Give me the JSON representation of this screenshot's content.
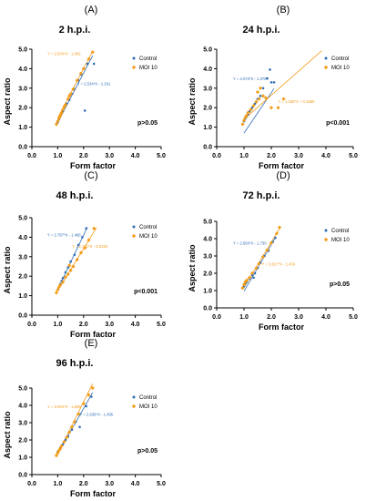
{
  "figure": {
    "series_colors": {
      "Control": "#2f6db5",
      "MOI 10": "#f39c19"
    },
    "fit_colors": {
      "Control": "#2f6db5",
      "MOI 10": "#f39c19"
    }
  },
  "chart_data": [
    {
      "type": "scatter",
      "panel_letter": "(A)",
      "title": "2 h.p.i.",
      "xlabel": "Form factor",
      "ylabel": "Aspect ratio",
      "xlim": [
        0.0,
        5.0
      ],
      "ylim": [
        0.0,
        5.0
      ],
      "x_ticks": [
        "0.0",
        "1.0",
        "2.0",
        "3.0",
        "4.0",
        "5.0"
      ],
      "y_ticks": [
        "0.0",
        "1.0",
        "2.0",
        "3.0",
        "4.0",
        "5.0"
      ],
      "legend": [
        "Control",
        "MOI 10"
      ],
      "legend_position": "top-right",
      "pvalue": "p>0.05",
      "fits": [
        {
          "series": "MOI 10",
          "label": "Y = 2.534*X - 1.062",
          "slope": 2.534,
          "intercept": -1.062,
          "xrange": [
            1.0,
            2.35
          ],
          "label_at": [
            0.6,
            4.7
          ]
        },
        {
          "series": "Control",
          "label": "Y = 2.534*X - 1.291",
          "slope": 2.534,
          "intercept": -1.291,
          "xrange": [
            1.0,
            2.35
          ],
          "label_at": [
            1.75,
            3.15
          ]
        }
      ],
      "series": [
        {
          "name": "Control",
          "points": [
            [
              1.0,
              1.25
            ],
            [
              1.05,
              1.4
            ],
            [
              1.1,
              1.55
            ],
            [
              1.15,
              1.7
            ],
            [
              1.2,
              1.8
            ],
            [
              1.3,
              2.1
            ],
            [
              1.35,
              2.2
            ],
            [
              1.45,
              2.4
            ],
            [
              1.55,
              2.7
            ],
            [
              1.65,
              2.95
            ],
            [
              1.8,
              3.4
            ],
            [
              1.9,
              3.7
            ],
            [
              2.15,
              4.25
            ],
            [
              2.4,
              4.25
            ],
            [
              2.05,
              1.85
            ]
          ]
        },
        {
          "name": "MOI 10",
          "points": [
            [
              0.95,
              1.15
            ],
            [
              1.0,
              1.3
            ],
            [
              1.05,
              1.45
            ],
            [
              1.08,
              1.55
            ],
            [
              1.12,
              1.65
            ],
            [
              1.2,
              1.9
            ],
            [
              1.25,
              2.05
            ],
            [
              1.3,
              2.15
            ],
            [
              1.4,
              2.45
            ],
            [
              1.5,
              2.7
            ],
            [
              1.6,
              2.95
            ],
            [
              1.75,
              3.4
            ],
            [
              1.9,
              3.75
            ],
            [
              2.0,
              4.0
            ],
            [
              2.2,
              4.5
            ],
            [
              2.35,
              4.85
            ],
            [
              1.15,
              1.75
            ],
            [
              1.45,
              2.6
            ]
          ]
        }
      ]
    },
    {
      "type": "scatter",
      "panel_letter": "(B)",
      "title": "24 h.p.i.",
      "xlabel": "Form factor",
      "ylabel": "Aspect ratio",
      "xlim": [
        0.0,
        5.0
      ],
      "ylim": [
        0.0,
        5.0
      ],
      "x_ticks": [
        "0.0",
        "1.0",
        "2.0",
        "3.0",
        "4.0",
        "5.0"
      ],
      "y_ticks": [
        "0.0",
        "1.0",
        "2.0",
        "3.0",
        "4.0",
        "5.0"
      ],
      "legend": [
        "Control",
        "MOI 10"
      ],
      "legend_position": "top-right",
      "pvalue": "p<0.001",
      "fits": [
        {
          "series": "Control",
          "label": "Y = 2.073*X - 1.378",
          "slope": 2.073,
          "intercept": -1.378,
          "xrange": [
            1.0,
            2.1
          ],
          "label_at": [
            0.6,
            3.4
          ]
        },
        {
          "series": "MOI 10",
          "label": "Y = 1.236*X + 0.1665",
          "slope": 1.236,
          "intercept": 0.1665,
          "xrange": [
            1.0,
            3.85
          ],
          "label_at": [
            2.25,
            2.25
          ]
        }
      ],
      "series": [
        {
          "name": "Control",
          "points": [
            [
              1.0,
              1.3
            ],
            [
              1.05,
              1.45
            ],
            [
              1.1,
              1.55
            ],
            [
              1.15,
              1.65
            ],
            [
              1.2,
              1.8
            ],
            [
              1.3,
              2.0
            ],
            [
              1.4,
              2.2
            ],
            [
              1.5,
              2.45
            ],
            [
              1.6,
              2.6
            ],
            [
              1.7,
              3.0
            ],
            [
              1.85,
              3.5
            ],
            [
              1.95,
              3.95
            ],
            [
              2.0,
              3.3
            ],
            [
              2.1,
              3.3
            ]
          ]
        },
        {
          "name": "MOI 10",
          "points": [
            [
              0.95,
              1.15
            ],
            [
              1.0,
              1.35
            ],
            [
              1.05,
              1.5
            ],
            [
              1.1,
              1.6
            ],
            [
              1.15,
              1.75
            ],
            [
              1.25,
              1.9
            ],
            [
              1.35,
              2.1
            ],
            [
              1.45,
              2.3
            ],
            [
              1.55,
              2.45
            ],
            [
              1.7,
              2.6
            ],
            [
              1.5,
              2.8
            ],
            [
              1.8,
              2.5
            ],
            [
              2.0,
              2.0
            ],
            [
              2.45,
              2.45
            ],
            [
              2.25,
              2.0
            ],
            [
              1.6,
              3.0
            ]
          ]
        }
      ]
    },
    {
      "type": "scatter",
      "panel_letter": "(C)",
      "title": "48 h.p.i.",
      "xlabel": "Form factor",
      "ylabel": "Aspect ratio",
      "xlim": [
        0.0,
        5.0
      ],
      "ylim": [
        0.0,
        5.0
      ],
      "x_ticks": [
        "0.0",
        "1.0",
        "2.0",
        "3.0",
        "4.0",
        "5.0"
      ],
      "y_ticks": [
        "0.0",
        "1.0",
        "2.0",
        "3.0",
        "4.0",
        "5.0"
      ],
      "legend": [
        "Control",
        "MOI 10"
      ],
      "legend_position": "top-right",
      "pvalue": "p<0.001",
      "fits": [
        {
          "series": "Control",
          "label": "Y = 2.787*X - 1.466",
          "slope": 2.787,
          "intercept": -1.466,
          "xrange": [
            1.0,
            2.15
          ],
          "label_at": [
            0.6,
            4.05
          ]
        },
        {
          "series": "MOI 10",
          "label": "Y = 2.161*X - 0.9130",
          "slope": 2.161,
          "intercept": -0.913,
          "xrange": [
            1.0,
            2.5
          ],
          "label_at": [
            1.55,
            3.45
          ]
        }
      ],
      "series": [
        {
          "name": "Control",
          "points": [
            [
              1.0,
              1.3
            ],
            [
              1.05,
              1.45
            ],
            [
              1.1,
              1.6
            ],
            [
              1.15,
              1.75
            ],
            [
              1.2,
              1.9
            ],
            [
              1.3,
              2.2
            ],
            [
              1.4,
              2.45
            ],
            [
              1.5,
              2.75
            ],
            [
              1.65,
              3.1
            ],
            [
              1.8,
              3.6
            ],
            [
              1.95,
              4.0
            ],
            [
              2.1,
              4.45
            ]
          ]
        },
        {
          "name": "MOI 10",
          "points": [
            [
              0.95,
              1.15
            ],
            [
              1.0,
              1.3
            ],
            [
              1.05,
              1.45
            ],
            [
              1.1,
              1.55
            ],
            [
              1.2,
              1.7
            ],
            [
              1.3,
              1.95
            ],
            [
              1.4,
              2.1
            ],
            [
              1.5,
              2.3
            ],
            [
              1.6,
              2.5
            ],
            [
              1.75,
              2.85
            ],
            [
              1.9,
              3.2
            ],
            [
              2.05,
              3.45
            ],
            [
              2.2,
              3.85
            ],
            [
              2.4,
              4.45
            ],
            [
              1.45,
              2.55
            ]
          ]
        }
      ]
    },
    {
      "type": "scatter",
      "panel_letter": "(D)",
      "title": "72 h.p.i.",
      "xlabel": "Form factor",
      "ylabel": "Aspect ratio",
      "xlim": [
        0.0,
        5.0
      ],
      "ylim": [
        0.0,
        5.0
      ],
      "x_ticks": [
        "0.0",
        "1.0",
        "2.0",
        "3.0",
        "4.0",
        "5.0"
      ],
      "y_ticks": [
        "0.0",
        "1.0",
        "2.0",
        "3.0",
        "4.0",
        "5.0"
      ],
      "legend": [
        "Control",
        "MOI 10"
      ],
      "legend_position": "top-right",
      "pvalue": "p>0.05",
      "fits": [
        {
          "series": "Control",
          "label": "Y = 2.693*X - 1.730",
          "slope": 2.693,
          "intercept": -1.73,
          "xrange": [
            1.0,
            2.15
          ],
          "label_at": [
            0.6,
            3.65
          ]
        },
        {
          "series": "MOI 10",
          "label": "Y = 2.617*X - 1.433",
          "slope": 2.617,
          "intercept": -1.433,
          "xrange": [
            1.0,
            2.3
          ],
          "label_at": [
            1.65,
            2.45
          ]
        }
      ],
      "series": [
        {
          "name": "Control",
          "points": [
            [
              1.0,
              1.25
            ],
            [
              1.05,
              1.4
            ],
            [
              1.1,
              1.5
            ],
            [
              1.2,
              1.7
            ],
            [
              1.3,
              1.9
            ],
            [
              1.4,
              2.0
            ],
            [
              1.5,
              2.3
            ],
            [
              1.6,
              2.6
            ],
            [
              1.75,
              3.0
            ],
            [
              1.9,
              3.3
            ],
            [
              2.05,
              3.8
            ],
            [
              2.15,
              4.05
            ],
            [
              1.35,
              1.75
            ]
          ]
        },
        {
          "name": "MOI 10",
          "points": [
            [
              0.95,
              1.15
            ],
            [
              1.0,
              1.35
            ],
            [
              1.05,
              1.5
            ],
            [
              1.1,
              1.6
            ],
            [
              1.2,
              1.75
            ],
            [
              1.3,
              2.0
            ],
            [
              1.45,
              2.3
            ],
            [
              1.55,
              2.55
            ],
            [
              1.7,
              2.95
            ],
            [
              1.85,
              3.35
            ],
            [
              2.0,
              3.75
            ],
            [
              2.2,
              4.3
            ],
            [
              2.3,
              4.65
            ]
          ]
        }
      ]
    },
    {
      "type": "scatter",
      "panel_letter": "(E)",
      "title": "96 h.p.i.",
      "xlabel": "Form factor",
      "ylabel": "Aspect ratio",
      "xlim": [
        0.0,
        5.0
      ],
      "ylim": [
        0.0,
        5.0
      ],
      "x_ticks": [
        "0.0",
        "1.0",
        "2.0",
        "3.0",
        "4.0",
        "5.0"
      ],
      "y_ticks": [
        "0.0",
        "1.0",
        "2.0",
        "3.0",
        "4.0",
        "5.0"
      ],
      "legend": [
        "Control",
        "MOI 10"
      ],
      "legend_position": "top-right",
      "pvalue": "p>0.05",
      "fits": [
        {
          "series": "MOI 10",
          "label": "Y = 3.004*X - 1.808",
          "slope": 3.004,
          "intercept": -1.808,
          "xrange": [
            1.0,
            2.35
          ],
          "label_at": [
            0.6,
            3.85
          ]
        },
        {
          "series": "Control",
          "label": "Y = 2.636*X - 1.456",
          "slope": 2.636,
          "intercept": -1.456,
          "xrange": [
            1.0,
            2.35
          ],
          "label_at": [
            1.85,
            3.4
          ]
        }
      ],
      "series": [
        {
          "name": "Control",
          "points": [
            [
              1.0,
              1.3
            ],
            [
              1.05,
              1.4
            ],
            [
              1.1,
              1.55
            ],
            [
              1.2,
              1.75
            ],
            [
              1.3,
              2.0
            ],
            [
              1.4,
              2.2
            ],
            [
              1.55,
              2.6
            ],
            [
              1.7,
              3.05
            ],
            [
              1.85,
              2.75
            ],
            [
              2.1,
              3.95
            ],
            [
              2.3,
              4.5
            ]
          ]
        },
        {
          "name": "MOI 10",
          "points": [
            [
              0.95,
              1.1
            ],
            [
              1.0,
              1.25
            ],
            [
              1.05,
              1.4
            ],
            [
              1.1,
              1.5
            ],
            [
              1.15,
              1.65
            ],
            [
              1.25,
              1.9
            ],
            [
              1.35,
              2.15
            ],
            [
              1.45,
              2.45
            ],
            [
              1.55,
              2.75
            ],
            [
              1.65,
              3.05
            ],
            [
              1.8,
              3.5
            ],
            [
              2.0,
              4.1
            ],
            [
              2.2,
              4.6
            ],
            [
              2.35,
              5.0
            ]
          ]
        }
      ]
    }
  ]
}
